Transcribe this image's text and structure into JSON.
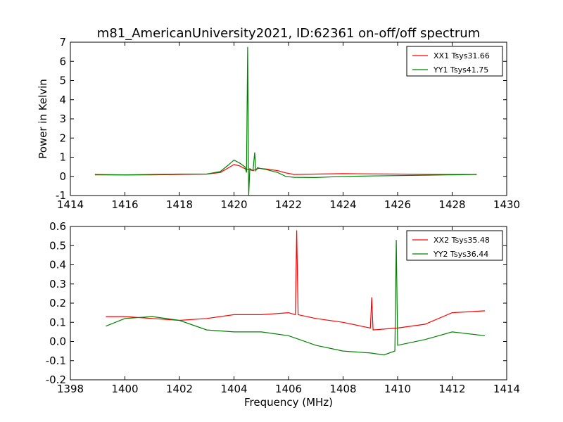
{
  "title": "m81_AmericanUniversity2021, ID:62361 on-off/off spectrum",
  "chart_data": [
    {
      "type": "line",
      "ylabel": "Power in Kelvin",
      "xlabel": "",
      "xlim": [
        1414,
        1430
      ],
      "ylim": [
        -1,
        7
      ],
      "xticks": [
        1414,
        1416,
        1418,
        1420,
        1422,
        1424,
        1426,
        1428,
        1430
      ],
      "yticks": [
        -1,
        0,
        1,
        2,
        3,
        4,
        5,
        6,
        7
      ],
      "legend_position": "top-right",
      "series": [
        {
          "name": "XX1 Tsys31.66",
          "color": "#ff0000",
          "x": [
            1414.9,
            1416.0,
            1417.0,
            1418.0,
            1419.0,
            1419.5,
            1419.8,
            1420.0,
            1420.2,
            1420.4,
            1420.55,
            1420.7,
            1420.9,
            1421.2,
            1421.6,
            1421.9,
            1422.2,
            1423.0,
            1424.0,
            1425.0,
            1426.0,
            1427.0,
            1428.0,
            1428.9
          ],
          "y": [
            0.08,
            0.07,
            0.08,
            0.1,
            0.12,
            0.2,
            0.45,
            0.62,
            0.55,
            0.4,
            0.35,
            0.3,
            0.42,
            0.38,
            0.3,
            0.18,
            0.1,
            0.12,
            0.14,
            0.13,
            0.12,
            0.11,
            0.1,
            0.1
          ]
        },
        {
          "name": "YY1 Tsys41.75",
          "color": "#008000",
          "x": [
            1414.9,
            1416.0,
            1417.0,
            1418.0,
            1419.0,
            1419.5,
            1419.8,
            1420.0,
            1420.2,
            1420.4,
            1420.46,
            1420.5,
            1420.54,
            1420.58,
            1420.7,
            1420.76,
            1420.8,
            1420.86,
            1421.0,
            1421.2,
            1421.6,
            1421.9,
            1422.2,
            1423.0,
            1424.0,
            1425.0,
            1426.0,
            1427.0,
            1428.0,
            1428.9
          ],
          "y": [
            0.1,
            0.08,
            0.1,
            0.12,
            0.12,
            0.25,
            0.6,
            0.85,
            0.7,
            0.5,
            0.2,
            6.75,
            -1.0,
            0.4,
            0.3,
            1.25,
            0.3,
            0.45,
            0.4,
            0.35,
            0.2,
            0.0,
            -0.05,
            -0.06,
            0.0,
            0.02,
            0.04,
            0.06,
            0.08,
            0.1
          ]
        }
      ]
    },
    {
      "type": "line",
      "ylabel": "",
      "xlabel": "Frequency (MHz)",
      "xlim": [
        1398,
        1414
      ],
      "ylim": [
        -0.2,
        0.6
      ],
      "xticks": [
        1398,
        1400,
        1402,
        1404,
        1406,
        1408,
        1410,
        1412,
        1414
      ],
      "yticks": [
        -0.2,
        -0.1,
        0.0,
        0.1,
        0.2,
        0.3,
        0.4,
        0.5,
        0.6
      ],
      "legend_position": "top-right",
      "series": [
        {
          "name": "XX2 Tsys35.48",
          "color": "#ff0000",
          "x": [
            1399.3,
            1400.0,
            1401.0,
            1402.0,
            1403.0,
            1404.0,
            1405.0,
            1406.0,
            1406.25,
            1406.3,
            1406.35,
            1407.0,
            1408.0,
            1409.0,
            1409.05,
            1409.1,
            1410.0,
            1411.0,
            1412.0,
            1413.2
          ],
          "y": [
            0.13,
            0.13,
            0.12,
            0.11,
            0.12,
            0.14,
            0.14,
            0.15,
            0.14,
            0.58,
            0.14,
            0.12,
            0.1,
            0.07,
            0.23,
            0.06,
            0.07,
            0.09,
            0.15,
            0.16
          ]
        },
        {
          "name": "YY2 Tsys36.44",
          "color": "#008000",
          "x": [
            1399.3,
            1400.0,
            1401.0,
            1402.0,
            1403.0,
            1404.0,
            1405.0,
            1406.0,
            1407.0,
            1408.0,
            1409.0,
            1409.5,
            1409.9,
            1409.95,
            1410.0,
            1411.0,
            1412.0,
            1413.2
          ],
          "y": [
            0.08,
            0.12,
            0.13,
            0.11,
            0.06,
            0.05,
            0.05,
            0.03,
            -0.02,
            -0.05,
            -0.06,
            -0.07,
            -0.05,
            0.53,
            -0.02,
            0.01,
            0.05,
            0.03
          ]
        }
      ]
    }
  ]
}
